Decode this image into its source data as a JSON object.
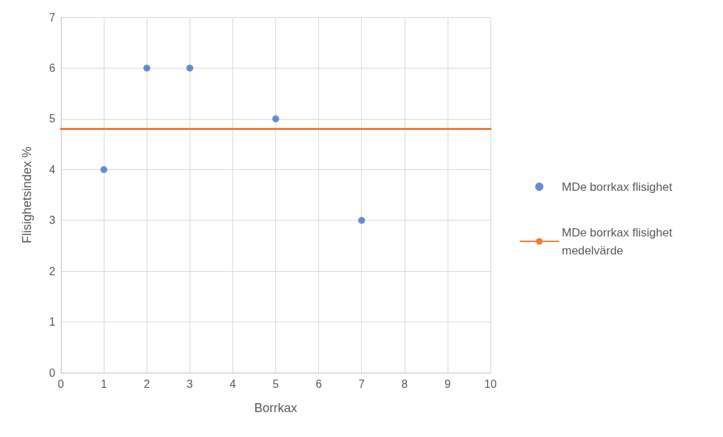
{
  "chart_data": {
    "type": "scatter",
    "xlabel": "Borrkax",
    "ylabel": "Flisighetsindex %",
    "xlim": [
      0,
      10
    ],
    "xticks": [
      0,
      1,
      2,
      3,
      4,
      5,
      6,
      7,
      8,
      9,
      10
    ],
    "ylim": [
      0,
      7
    ],
    "yticks": [
      0,
      1,
      2,
      3,
      4,
      5,
      6,
      7
    ],
    "grid": true,
    "legend": "right",
    "marker": "circle",
    "series": [
      {
        "name": "MDe borrkax flisighet",
        "color": "#4472c4",
        "x": [
          1,
          2,
          3,
          5,
          7
        ],
        "values": [
          4,
          6,
          6,
          5,
          3
        ]
      },
      {
        "name": "MDe borrkax flisighet medelvärde",
        "type": "line",
        "color": "#ed7d31",
        "marker": "none",
        "line_style": "solid",
        "x": [
          0,
          10
        ],
        "values": [
          4.8,
          4.8
        ]
      }
    ]
  }
}
